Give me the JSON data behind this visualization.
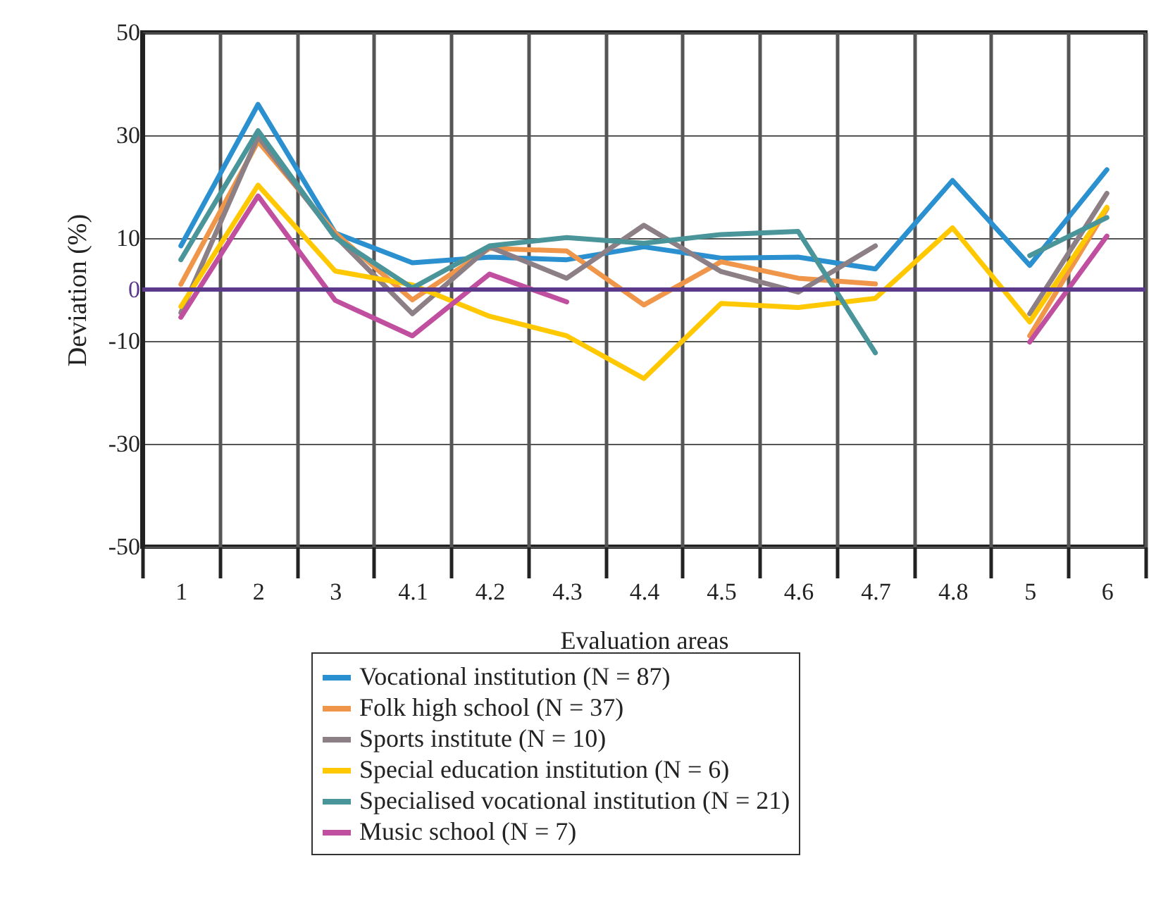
{
  "chart_data": {
    "type": "line",
    "xlabel": "Evaluation areas",
    "ylabel": "Deviation (%)",
    "categories": [
      "1",
      "2",
      "3",
      "4.1",
      "4.2",
      "4.3",
      "4.4",
      "4.5",
      "4.6",
      "4.7",
      "4.8",
      "5",
      "6"
    ],
    "ylim": [
      -50,
      50
    ],
    "yticks": [
      -50,
      -30,
      -10,
      0,
      10,
      30,
      50
    ],
    "grid": true,
    "legend": "bottom",
    "ref_lines": [
      {
        "axis": "y",
        "value": 0,
        "color": "#5b3a8c"
      }
    ],
    "series": [
      {
        "name": "Vocational institution (N = 87)",
        "color": "#2a90d0",
        "values": [
          8.5,
          36,
          11,
          5.2,
          6.3,
          5.8,
          8.3,
          6.1,
          6.3,
          4,
          21.2,
          4.7,
          23.3
        ]
      },
      {
        "name": "Folk high school (N = 37)",
        "color": "#f0964a",
        "values": [
          1,
          28.8,
          11,
          -2,
          8,
          7.5,
          -3,
          5.4,
          2.2,
          1.1,
          null,
          -9,
          15.7
        ]
      },
      {
        "name": "Sports institute (N = 10)",
        "color": "#8c7f85",
        "values": [
          -4.5,
          29.7,
          10.4,
          -4.7,
          8.3,
          2.2,
          12.5,
          3.5,
          -0.5,
          8.5,
          null,
          -4.7,
          18.7
        ]
      },
      {
        "name": "Special education institution (N = 6)",
        "color": "#ffc800",
        "values": [
          -3.3,
          20.3,
          3.6,
          0.9,
          -5.2,
          -9,
          -17.3,
          -2.7,
          -3.5,
          -1.7,
          12,
          -6.3,
          16
        ]
      },
      {
        "name": "Specialised vocational institution (N = 21)",
        "color": "#4a959a",
        "values": [
          5.8,
          30.9,
          10.1,
          0.3,
          8.5,
          10.1,
          9,
          10.7,
          11.3,
          -12.3,
          null,
          6.6,
          14
        ]
      },
      {
        "name": "Music school (N = 7)",
        "color": "#c04fa0",
        "values": [
          -5.4,
          18.2,
          -2.1,
          -9,
          3,
          -2.4,
          null,
          null,
          null,
          null,
          null,
          -10.2,
          10.4
        ]
      }
    ]
  }
}
